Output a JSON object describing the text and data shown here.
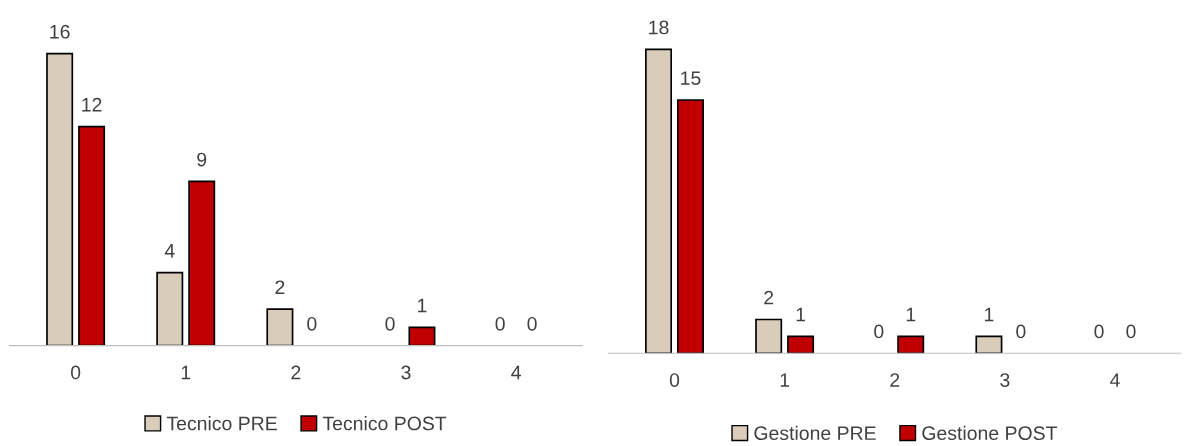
{
  "chart_data": [
    {
      "type": "bar",
      "categories": [
        "0",
        "1",
        "2",
        "3",
        "4"
      ],
      "data_labels": true,
      "legend": "bottom",
      "grid": false,
      "series": [
        {
          "name": "Tecnico PRE",
          "color": "#d9ccba",
          "values": [
            16,
            4,
            2,
            0,
            0
          ]
        },
        {
          "name": "Tecnico POST",
          "color": "#c00000",
          "values": [
            12,
            9,
            0,
            1,
            0
          ]
        }
      ]
    },
    {
      "type": "bar",
      "categories": [
        "0",
        "1",
        "2",
        "3",
        "4"
      ],
      "data_labels": true,
      "legend": "bottom",
      "grid": false,
      "series": [
        {
          "name": "Gestione PRE",
          "color": "#d9ccba",
          "values": [
            18,
            2,
            0,
            1,
            0
          ]
        },
        {
          "name": "Gestione POST",
          "color": "#c00000",
          "values": [
            15,
            1,
            1,
            0,
            0
          ]
        }
      ]
    }
  ]
}
